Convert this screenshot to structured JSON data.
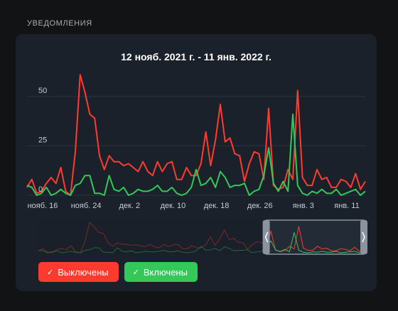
{
  "section_title": "УВЕДОМЛЕНИЯ",
  "chart_data": {
    "type": "line",
    "title": "12 нояб. 2021 г. - 11 янв. 2022 г.",
    "xlabel": "",
    "ylabel": "",
    "x_tick_labels": [
      "нояб. 16",
      "нояб. 24",
      "дек. 2",
      "дек. 10",
      "дек. 18",
      "дек. 26",
      "янв. 3",
      "янв. 11"
    ],
    "y_ticks": [
      0,
      25,
      50
    ],
    "ylim": [
      0,
      60
    ],
    "grid": true,
    "series": [
      {
        "name": "Выключены",
        "color": "#ff3b30",
        "values": [
          4,
          8,
          1,
          2,
          6,
          9,
          6,
          14,
          2,
          0,
          22,
          61,
          52,
          41,
          39,
          20,
          13,
          20,
          17,
          17,
          15,
          16,
          14,
          12,
          17,
          12,
          10,
          17,
          12,
          16,
          17,
          8,
          8,
          14,
          10,
          10,
          16,
          32,
          15,
          28,
          46,
          27,
          29,
          21,
          20,
          7,
          16,
          22,
          21,
          8,
          44,
          5,
          3,
          4,
          13,
          8,
          53,
          9,
          5,
          5,
          13,
          8,
          9,
          4,
          4,
          8,
          7,
          4,
          11,
          3,
          7
        ],
        "visible": true
      },
      {
        "name": "Включены",
        "color": "#34c759",
        "values": [
          5,
          4,
          0,
          1,
          4,
          0,
          1,
          3,
          1,
          0,
          5,
          6,
          10,
          10,
          1,
          1,
          0,
          10,
          3,
          2,
          4,
          0,
          1,
          3,
          2,
          2,
          3,
          5,
          2,
          2,
          4,
          1,
          0,
          1,
          4,
          13,
          5,
          6,
          9,
          4,
          12,
          9,
          4,
          5,
          5,
          6,
          0,
          2,
          3,
          10,
          24,
          6,
          2,
          7,
          2,
          41,
          5,
          1,
          0,
          2,
          1,
          3,
          1,
          1,
          3,
          0,
          1,
          2,
          3,
          0,
          2
        ],
        "visible": true
      }
    ]
  },
  "legend": {
    "off_label": "Выключены",
    "on_label": "Включены",
    "off_color": "#ff3b30",
    "on_color": "#34c759"
  },
  "navigator": {
    "window_start_fraction": 0.7,
    "window_end_fraction": 1.0
  }
}
